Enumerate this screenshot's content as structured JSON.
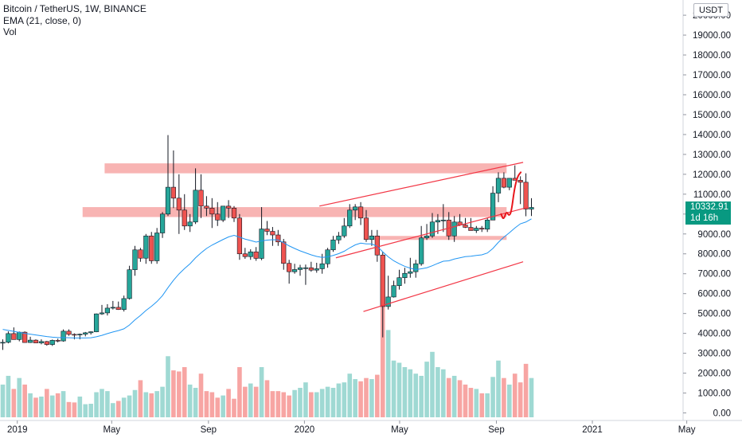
{
  "legend": {
    "symbol": "Bitcoin / TetherUS, 1W, BINANCE",
    "ema": "EMA (21, close, 0)",
    "vol": "Vol"
  },
  "currency": "USDT",
  "last_price": {
    "value": "10332.91",
    "countdown": "1d 16h",
    "color": "#089981"
  },
  "colors": {
    "up": "#26a69a",
    "down": "#ef5350",
    "ema": "#2196f3",
    "vol_up": "#9fd9d3",
    "vol_down": "#f7a5a3",
    "zone": "#f7a7a6",
    "channel": "#f23645",
    "projection": "#e8171d"
  },
  "chart_data": {
    "type": "candlestick",
    "symbol": "Bitcoin / TetherUS",
    "interval": "1W",
    "exchange": "BINANCE",
    "indicators": [
      "EMA (21, close, 0)",
      "Vol"
    ],
    "y_axis": {
      "range": [
        0,
        20500
      ],
      "ticks": [
        "0.00",
        "1000.00",
        "2000.00",
        "3000.00",
        "4000.00",
        "5000.00",
        "6000.00",
        "7000.00",
        "8000.00",
        "9000.00",
        "10000.00",
        "11000.00",
        "12000.00",
        "13000.00",
        "14000.00",
        "15000.00",
        "16000.00",
        "17000.00",
        "18000.00",
        "19000.00",
        "20000.00"
      ]
    },
    "x_axis": {
      "start": "2018-12-10",
      "end": "2021-05-10",
      "labels": [
        {
          "text": "2019",
          "date": "2019-01-01"
        },
        {
          "text": "May",
          "date": "2019-05-01"
        },
        {
          "text": "Sep",
          "date": "2019-09-01"
        },
        {
          "text": "2020",
          "date": "2020-01-01"
        },
        {
          "text": "May",
          "date": "2020-05-01"
        },
        {
          "text": "Sep",
          "date": "2020-09-01"
        },
        {
          "text": "2021",
          "date": "2021-01-01"
        },
        {
          "text": "May",
          "date": "2021-05-01"
        }
      ]
    },
    "candles_start": "2018-12-10",
    "candles": [
      [
        3540,
        3700,
        3170,
        3550
      ],
      [
        3550,
        4100,
        3500,
        3990
      ],
      [
        3990,
        4300,
        3700,
        3690
      ],
      [
        3690,
        4090,
        3600,
        4060
      ],
      [
        4060,
        4100,
        3530,
        3540
      ],
      [
        3540,
        3830,
        3520,
        3660
      ],
      [
        3660,
        3700,
        3510,
        3520
      ],
      [
        3520,
        3700,
        3450,
        3590
      ],
      [
        3590,
        3620,
        3380,
        3440
      ],
      [
        3440,
        3690,
        3370,
        3650
      ],
      [
        3650,
        3730,
        3550,
        3620
      ],
      [
        3620,
        4200,
        3580,
        4110
      ],
      [
        4110,
        4200,
        3880,
        3950
      ],
      [
        3950,
        4000,
        3700,
        3920
      ],
      [
        3920,
        3990,
        3700,
        3960
      ],
      [
        3960,
        4070,
        3850,
        4030
      ],
      [
        4030,
        4100,
        3940,
        4080
      ],
      [
        4080,
        5000,
        4060,
        4980
      ],
      [
        4980,
        5430,
        4930,
        5030
      ],
      [
        5030,
        5470,
        4900,
        5270
      ],
      [
        5270,
        5630,
        5200,
        5310
      ],
      [
        5310,
        5600,
        5180,
        5200
      ],
      [
        5200,
        5900,
        5100,
        5750
      ],
      [
        5750,
        7400,
        5700,
        7200
      ],
      [
        7200,
        8400,
        6900,
        8200
      ],
      [
        8200,
        8300,
        7600,
        7780
      ],
      [
        7780,
        9000,
        7500,
        8900
      ],
      [
        8900,
        9100,
        7500,
        7650
      ],
      [
        7650,
        9300,
        7500,
        9050
      ],
      [
        9050,
        10100,
        8800,
        10000
      ],
      [
        10000,
        13970,
        9900,
        11350
      ],
      [
        11350,
        13200,
        10300,
        10800
      ],
      [
        10800,
        12000,
        9000,
        10200
      ],
      [
        10200,
        11000,
        9200,
        9400
      ],
      [
        9400,
        10000,
        9100,
        9600
      ],
      [
        9600,
        12300,
        9500,
        11200
      ],
      [
        11200,
        12000,
        9800,
        10400
      ],
      [
        10400,
        10900,
        9900,
        10300
      ],
      [
        10300,
        10800,
        9300,
        10000
      ],
      [
        10000,
        10600,
        9400,
        9700
      ],
      [
        9700,
        10300,
        9600,
        10400
      ],
      [
        10400,
        10700,
        9800,
        10300
      ],
      [
        10300,
        10400,
        9600,
        9800
      ],
      [
        9800,
        10000,
        7700,
        8000
      ],
      [
        8000,
        8300,
        7750,
        7860
      ],
      [
        7860,
        8230,
        7700,
        8100
      ],
      [
        8100,
        8340,
        7650,
        7770
      ],
      [
        7770,
        10350,
        7680,
        9250
      ],
      [
        9250,
        9650,
        8940,
        9130
      ],
      [
        9130,
        9350,
        8400,
        8950
      ],
      [
        8950,
        9200,
        8400,
        8600
      ],
      [
        8600,
        8750,
        7200,
        7520
      ],
      [
        7520,
        7700,
        6500,
        7100
      ],
      [
        7100,
        7500,
        7000,
        7210
      ],
      [
        7210,
        7450,
        6900,
        7300
      ],
      [
        7300,
        7460,
        6440,
        7300
      ],
      [
        7300,
        7600,
        7100,
        7180
      ],
      [
        7180,
        7550,
        7050,
        7250
      ],
      [
        7250,
        8000,
        7000,
        7500
      ],
      [
        7500,
        8300,
        7300,
        8200
      ],
      [
        8200,
        8900,
        8100,
        8700
      ],
      [
        8700,
        9100,
        8500,
        8900
      ],
      [
        8900,
        9800,
        8800,
        9400
      ],
      [
        9400,
        10500,
        9300,
        10200
      ],
      [
        10200,
        10500,
        9700,
        10360
      ],
      [
        10360,
        10600,
        9450,
        9800
      ],
      [
        9800,
        10200,
        8600,
        8720
      ],
      [
        8720,
        9200,
        8400,
        8900
      ],
      [
        8900,
        9200,
        7600,
        7940
      ],
      [
        7940,
        8100,
        3800,
        5350
      ],
      [
        5350,
        6900,
        5200,
        5830
      ],
      [
        5830,
        6650,
        5800,
        6400
      ],
      [
        6400,
        7200,
        6200,
        6800
      ],
      [
        6800,
        7300,
        6500,
        7020
      ],
      [
        7020,
        7800,
        6800,
        7100
      ],
      [
        7100,
        7700,
        6800,
        7500
      ],
      [
        7500,
        9400,
        7400,
        8800
      ],
      [
        8800,
        9500,
        8700,
        8900
      ],
      [
        8900,
        10050,
        8800,
        9600
      ],
      [
        9600,
        10000,
        9000,
        9680
      ],
      [
        9680,
        10500,
        9100,
        9700
      ],
      [
        9700,
        10100,
        8700,
        8900
      ],
      [
        8900,
        9900,
        8600,
        9600
      ],
      [
        9600,
        10000,
        9400,
        9450
      ],
      [
        9450,
        9800,
        9300,
        9330
      ],
      [
        9330,
        9800,
        9200,
        9170
      ],
      [
        9170,
        9400,
        9050,
        9290
      ],
      [
        9290,
        9400,
        9100,
        9240
      ],
      [
        9240,
        9800,
        9100,
        9700
      ],
      [
        9700,
        11400,
        9700,
        11050
      ],
      [
        11050,
        12100,
        10600,
        11800
      ],
      [
        11800,
        12100,
        11300,
        11350
      ],
      [
        11350,
        11800,
        11200,
        11800
      ],
      [
        11800,
        12450,
        11700,
        11700
      ],
      [
        11700,
        11900,
        10500,
        11600
      ],
      [
        11600,
        12050,
        9890,
        10250
      ],
      [
        10250,
        10800,
        9900,
        10333
      ]
    ],
    "volume": [
      1500,
      1900,
      1300,
      1800,
      1500,
      1100,
      900,
      950,
      1300,
      1000,
      1100,
      1200,
      700,
      680,
      950,
      600,
      620,
      1150,
      1300,
      1200,
      650,
      750,
      900,
      1000,
      1250,
      1700,
      1150,
      1100,
      1200,
      1400,
      2800,
      2150,
      2100,
      2300,
      1500,
      1350,
      2000,
      1200,
      1150,
      900,
      1000,
      1300,
      850,
      2300,
      1400,
      1550,
      1400,
      2300,
      1700,
      1200,
      1200,
      1150,
      1000,
      1250,
      1350,
      1600,
      1150,
      1150,
      1300,
      1400,
      1350,
      1550,
      1600,
      2000,
      1750,
      1650,
      1800,
      1750,
      1950,
      5200,
      4000,
      2600,
      2500,
      2300,
      2200,
      2000,
      1900,
      2550,
      3000,
      2300,
      2200,
      1800,
      1900,
      1700,
      1500,
      1350,
      1300,
      1100,
      1100,
      1850,
      2600,
      1800,
      1500,
      2000,
      1600,
      2450,
      1800
    ],
    "ema_21": [
      4200,
      4150,
      4100,
      4050,
      4000,
      3960,
      3920,
      3880,
      3840,
      3810,
      3790,
      3790,
      3780,
      3770,
      3770,
      3770,
      3780,
      3830,
      3900,
      3990,
      4070,
      4140,
      4230,
      4420,
      4680,
      4900,
      5150,
      5360,
      5600,
      5900,
      6300,
      6670,
      6990,
      7260,
      7500,
      7800,
      8050,
      8270,
      8440,
      8580,
      8720,
      8850,
      8930,
      8840,
      8740,
      8670,
      8590,
      8650,
      8690,
      8710,
      8700,
      8560,
      8400,
      8270,
      8150,
      8050,
      7950,
      7870,
      7820,
      7850,
      7920,
      8010,
      8130,
      8300,
      8450,
      8540,
      8500,
      8500,
      8380,
      8100,
      7850,
      7650,
      7500,
      7370,
      7280,
      7210,
      7250,
      7300,
      7400,
      7520,
      7630,
      7650,
      7740,
      7800,
      7860,
      7880,
      7920,
      7950,
      8040,
      8270,
      8580,
      8840,
      9060,
      9300,
      9510,
      9600,
      9760
    ],
    "annotations": {
      "resistance_zones": [
        {
          "low": 12050,
          "high": 12550,
          "start": "2019-04-22",
          "end": "2020-09-14"
        },
        {
          "low": 9850,
          "high": 10350,
          "start": "2019-03-25",
          "end": "2020-09-14"
        },
        {
          "low": 8700,
          "high": 8900,
          "start": "2020-03-30",
          "end": "2020-09-14"
        }
      ],
      "channel_lines": [
        {
          "from": {
            "date": "2020-01-20",
            "value": 10400
          },
          "to": {
            "date": "2020-10-05",
            "value": 12600
          }
        },
        {
          "from": {
            "date": "2020-02-10",
            "value": 7800
          },
          "to": {
            "date": "2020-10-12",
            "value": 10350
          }
        },
        {
          "from": {
            "date": "2020-03-16",
            "value": 5100
          },
          "to": {
            "date": "2020-10-05",
            "value": 7600
          }
        }
      ],
      "projection_path": [
        {
          "date": "2020-09-07",
          "value": 10000
        },
        {
          "date": "2020-09-10",
          "value": 9700
        },
        {
          "date": "2020-09-14",
          "value": 10150
        },
        {
          "date": "2020-09-17",
          "value": 9900
        },
        {
          "date": "2020-09-20",
          "value": 10100
        },
        {
          "date": "2020-09-24",
          "value": 11300
        },
        {
          "date": "2020-09-28",
          "value": 11900
        },
        {
          "date": "2020-10-02",
          "value": 12100
        }
      ]
    }
  }
}
